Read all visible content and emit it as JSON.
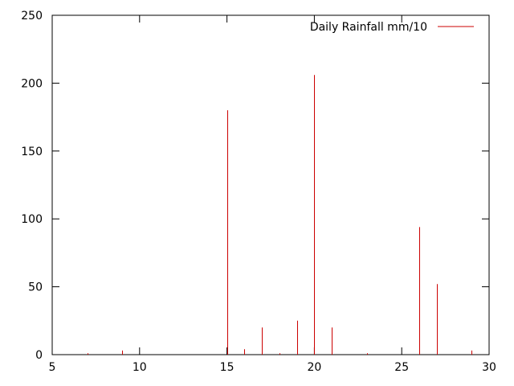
{
  "chart_data": {
    "type": "bar",
    "style": "impulses",
    "series": [
      {
        "name": "Daily Rainfall mm/10",
        "color": "#cc0000",
        "x": [
          7,
          9,
          15,
          16,
          17,
          18,
          19,
          20,
          21,
          23,
          26,
          27,
          29
        ],
        "values": [
          1,
          3,
          180,
          4,
          20,
          1,
          25,
          206,
          20,
          1,
          94,
          52,
          3
        ]
      }
    ],
    "xlim": [
      5,
      30
    ],
    "ylim": [
      0,
      250
    ],
    "x_ticks": [
      5,
      10,
      15,
      20,
      25,
      30
    ],
    "y_ticks": [
      0,
      50,
      100,
      150,
      200,
      250
    ],
    "x_tick_labels": [
      "5",
      "10",
      "15",
      "20",
      "25",
      "30"
    ],
    "y_tick_labels": [
      "0",
      "50",
      "100",
      "150",
      "200",
      "250"
    ],
    "grid": false,
    "legend": "top-right",
    "title": "",
    "xlabel": "",
    "ylabel": ""
  }
}
